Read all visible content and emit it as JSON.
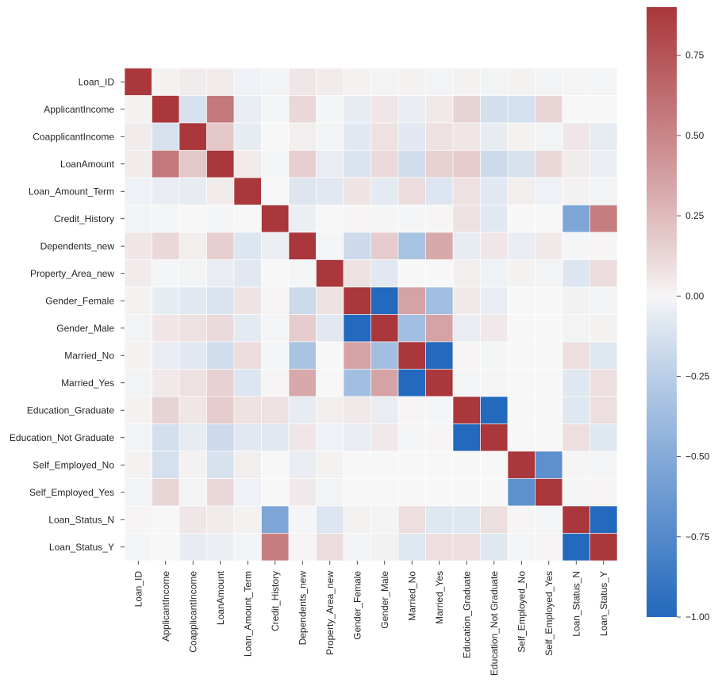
{
  "chart_data": {
    "type": "heatmap",
    "title": "",
    "xlabel": "",
    "ylabel": "",
    "variables": [
      "Loan_ID",
      "ApplicantIncome",
      "CoapplicantIncome",
      "LoanAmount",
      "Loan_Amount_Term",
      "Credit_History",
      "Dependents_new",
      "Property_Area_new",
      "Gender_Female",
      "Gender_Male",
      "Married_No",
      "Married_Yes",
      "Education_Graduate",
      "Education_Not Graduate",
      "Self_Employed_No",
      "Self_Employed_Yes",
      "Loan_Status_N",
      "Loan_Status_Y"
    ],
    "matrix": [
      [
        1.0,
        0.02,
        0.04,
        0.04,
        -0.03,
        -0.02,
        0.06,
        0.04,
        0.02,
        -0.02,
        0.02,
        -0.02,
        0.02,
        -0.02,
        0.02,
        -0.02,
        0.01,
        -0.01
      ],
      [
        0.02,
        1.0,
        -0.12,
        0.57,
        -0.05,
        -0.01,
        0.12,
        -0.01,
        -0.06,
        0.06,
        -0.05,
        0.05,
        0.14,
        -0.14,
        -0.13,
        0.13,
        0.0,
        0.0
      ],
      [
        0.04,
        -0.12,
        1.0,
        0.19,
        -0.06,
        0.0,
        0.03,
        -0.02,
        -0.08,
        0.08,
        -0.08,
        0.08,
        0.06,
        -0.06,
        0.02,
        -0.02,
        0.06,
        -0.06
      ],
      [
        0.04,
        0.57,
        0.19,
        1.0,
        0.04,
        -0.01,
        0.16,
        -0.05,
        -0.11,
        0.11,
        -0.15,
        0.15,
        0.17,
        -0.17,
        -0.12,
        0.12,
        0.04,
        -0.04
      ],
      [
        -0.03,
        -0.05,
        -0.06,
        0.04,
        1.0,
        0.0,
        -0.1,
        -0.08,
        0.07,
        -0.07,
        0.1,
        -0.1,
        0.08,
        -0.08,
        0.03,
        -0.03,
        0.02,
        -0.02
      ],
      [
        -0.02,
        -0.01,
        0.0,
        -0.01,
        0.0,
        1.0,
        -0.04,
        0.0,
        0.01,
        -0.01,
        -0.01,
        0.01,
        0.08,
        -0.08,
        0.0,
        0.0,
        -0.54,
        0.54
      ],
      [
        0.06,
        0.12,
        0.03,
        0.16,
        -0.1,
        -0.04,
        1.0,
        -0.01,
        -0.17,
        0.17,
        -0.33,
        0.33,
        -0.06,
        0.06,
        -0.05,
        0.05,
        -0.01,
        0.01
      ],
      [
        0.04,
        -0.01,
        -0.02,
        -0.05,
        -0.08,
        0.0,
        -0.01,
        1.0,
        0.08,
        -0.08,
        0.0,
        0.0,
        0.03,
        -0.03,
        0.02,
        -0.02,
        -0.1,
        0.1
      ],
      [
        0.02,
        -0.06,
        -0.08,
        -0.11,
        0.07,
        0.01,
        -0.17,
        0.08,
        1.0,
        -1.0,
        0.36,
        -0.36,
        0.05,
        -0.05,
        0.0,
        0.0,
        0.02,
        -0.02
      ],
      [
        -0.02,
        0.06,
        0.08,
        0.11,
        -0.07,
        -0.01,
        0.17,
        -0.08,
        -1.0,
        1.0,
        -0.36,
        0.36,
        -0.05,
        0.05,
        0.0,
        0.0,
        -0.02,
        0.02
      ],
      [
        0.02,
        -0.05,
        -0.08,
        -0.15,
        0.1,
        -0.01,
        -0.33,
        0.0,
        0.36,
        -0.36,
        1.0,
        -1.0,
        0.01,
        -0.01,
        0.0,
        0.0,
        0.09,
        -0.09
      ],
      [
        -0.02,
        0.05,
        0.08,
        0.15,
        -0.1,
        0.01,
        0.33,
        0.0,
        -0.36,
        0.36,
        -1.0,
        1.0,
        -0.01,
        0.01,
        0.0,
        0.0,
        -0.09,
        0.09
      ],
      [
        0.02,
        0.14,
        0.06,
        0.17,
        0.08,
        0.08,
        -0.06,
        0.03,
        0.05,
        -0.05,
        0.01,
        -0.01,
        1.0,
        -1.0,
        0.0,
        0.0,
        -0.09,
        0.09
      ],
      [
        -0.02,
        -0.14,
        -0.06,
        -0.17,
        -0.08,
        -0.08,
        0.06,
        -0.03,
        -0.05,
        0.05,
        -0.01,
        0.01,
        -1.0,
        1.0,
        0.0,
        0.0,
        0.09,
        -0.09
      ],
      [
        0.02,
        -0.13,
        0.02,
        -0.12,
        0.03,
        0.0,
        -0.05,
        0.02,
        0.0,
        0.0,
        0.0,
        0.0,
        0.0,
        0.0,
        1.0,
        -0.7,
        0.01,
        -0.01
      ],
      [
        -0.02,
        0.13,
        -0.02,
        0.12,
        -0.03,
        0.0,
        0.05,
        -0.02,
        0.0,
        0.0,
        0.0,
        0.0,
        0.0,
        0.0,
        -0.7,
        1.0,
        -0.01,
        0.01
      ],
      [
        0.01,
        0.0,
        0.06,
        0.04,
        0.02,
        -0.54,
        -0.01,
        -0.1,
        0.02,
        -0.02,
        0.09,
        -0.09,
        -0.09,
        0.09,
        0.01,
        -0.01,
        1.0,
        -1.0
      ],
      [
        -0.01,
        0.0,
        -0.06,
        -0.04,
        -0.02,
        0.54,
        0.01,
        0.1,
        -0.02,
        0.02,
        -0.09,
        0.09,
        0.09,
        -0.09,
        -0.01,
        0.01,
        -1.0,
        1.0
      ]
    ],
    "vmin": -1.0,
    "vmax": 0.9,
    "colormap": "vlag",
    "colorbar": {
      "ticks": [
        0.75,
        0.5,
        0.25,
        0.0,
        -0.25,
        -0.5,
        -0.75,
        -1.0
      ],
      "tick_labels": [
        "0.75",
        "0.50",
        "0.25",
        "0.00",
        "−0.25",
        "−0.50",
        "−0.75",
        "−1.00"
      ]
    },
    "grid": false,
    "linecolor": "#ffffff",
    "colors": {
      "negative": "#2369bd",
      "neutral": "#f7f7f7",
      "positive": "#a9373b"
    },
    "legend": "right"
  }
}
